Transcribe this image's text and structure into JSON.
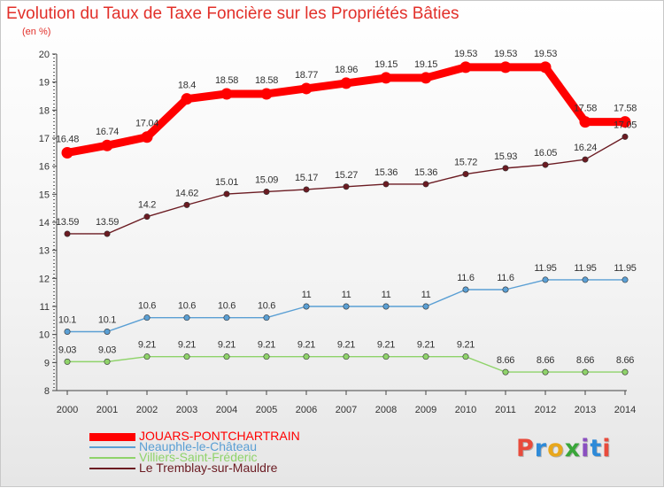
{
  "title": "Evolution du Taux de Taxe Foncière sur les Propriétés Bâties",
  "unit_label": "(en %)",
  "logo": {
    "text": "Proxiti",
    "letters": [
      {
        "char": "P",
        "color": "#e84b3c"
      },
      {
        "char": "r",
        "color": "#2e8ad8"
      },
      {
        "char": "o",
        "color": "#e8a71c"
      },
      {
        "char": "x",
        "color": "#3aa63a"
      },
      {
        "char": "i",
        "color": "#8a4fc0"
      },
      {
        "char": "t",
        "color": "#2e8ad8"
      },
      {
        "char": "i",
        "color": "#e84b3c"
      }
    ]
  },
  "chart_data": {
    "type": "line",
    "title": "Evolution du Taux de Taxe Foncière sur les Propriétés Bâties",
    "ylabel": "(en %)",
    "xlabel": "",
    "ylim": [
      8,
      20
    ],
    "yticks": [
      8,
      9,
      10,
      11,
      12,
      13,
      14,
      15,
      16,
      17,
      18,
      19,
      20
    ],
    "grid": false,
    "legend_position": "bottom-left",
    "x": [
      "2000",
      "2001",
      "2002",
      "2003",
      "2004",
      "2005",
      "2006",
      "2007",
      "2008",
      "2009",
      "2010",
      "2011",
      "2012",
      "2013",
      "2014"
    ],
    "series": [
      {
        "name": "JOUARS-PONTCHARTRAIN",
        "color": "#ff0000",
        "emphasis": true,
        "values": [
          16.48,
          16.74,
          17.04,
          18.4,
          18.58,
          18.58,
          18.77,
          18.96,
          19.15,
          19.15,
          19.53,
          19.53,
          19.53,
          17.58,
          17.58
        ],
        "labels": [
          "16.48",
          "16.74",
          "17.04",
          "18.4",
          "18.58",
          "18.58",
          "18.77",
          "18.96",
          "19.15",
          "19.15",
          "19.53",
          "19.53",
          "19.53",
          "17.58",
          "17.58"
        ]
      },
      {
        "name": "Neauphle-le-Château",
        "color": "#5a9fd4",
        "emphasis": false,
        "values": [
          10.1,
          10.1,
          10.6,
          10.6,
          10.6,
          10.6,
          11,
          11,
          11,
          11,
          11.6,
          11.6,
          11.95,
          11.95,
          11.95
        ],
        "labels": [
          "10.1",
          "10.1",
          "10.6",
          "10.6",
          "10.6",
          "10.6",
          "11",
          "11",
          "11",
          "11",
          "11.6",
          "11.6",
          "11.95",
          "11.95",
          "11.95"
        ]
      },
      {
        "name": "Villiers-Saint-Fréderic",
        "color": "#8fd36a",
        "emphasis": false,
        "values": [
          9.03,
          9.03,
          9.21,
          9.21,
          9.21,
          9.21,
          9.21,
          9.21,
          9.21,
          9.21,
          9.21,
          8.66,
          8.66,
          8.66,
          8.66
        ],
        "labels": [
          "9.03",
          "9.03",
          "9.21",
          "9.21",
          "9.21",
          "9.21",
          "9.21",
          "9.21",
          "9.21",
          "9.21",
          "9.21",
          "8.66",
          "8.66",
          "8.66",
          "8.66"
        ]
      },
      {
        "name": "Le Tremblay-sur-Mauldre",
        "color": "#6b1b22",
        "emphasis": false,
        "values": [
          13.59,
          13.59,
          14.2,
          14.62,
          15.01,
          15.09,
          15.17,
          15.27,
          15.36,
          15.36,
          15.72,
          15.93,
          16.05,
          16.24,
          17.05
        ],
        "labels": [
          "13.59",
          "13.59",
          "14.2",
          "14.62",
          "15.01",
          "15.09",
          "15.17",
          "15.27",
          "15.36",
          "15.36",
          "15.72",
          "15.93",
          "16.05",
          "16.24",
          "17.05"
        ]
      }
    ]
  }
}
